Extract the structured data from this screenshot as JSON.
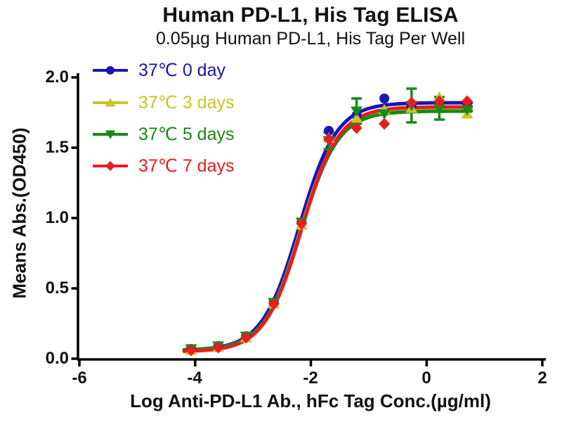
{
  "chart_data": {
    "type": "scatter",
    "title": "Human PD-L1, His Tag ELISA",
    "subtitle": "0.05µg Human PD-L1, His Tag Per Well",
    "xlabel": "Log Anti-PD-L1 Ab., hFc Tag Conc.(µg/ml)",
    "ylabel": "Means Abs.(OD450)",
    "xlim": [
      -6,
      2
    ],
    "ylim": [
      0,
      2
    ],
    "xticks": [
      -6,
      -4,
      -2,
      0,
      2
    ],
    "xticklabels": [
      "-6",
      "-4",
      "-2",
      "0",
      "2"
    ],
    "yticks": [
      0,
      0.5,
      1,
      1.5,
      2
    ],
    "yticklabels": [
      "0.0",
      "0.5",
      "1.0",
      "1.5",
      "2.0"
    ],
    "grid": false,
    "legend_position": "top-left-inside",
    "curve_model": "four-parameter-logistic",
    "curve_x_range": [
      -4.19,
      0.8
    ],
    "x": [
      -4.07,
      -3.6,
      -3.12,
      -2.64,
      -2.16,
      -1.69,
      -1.21,
      -0.73,
      -0.26,
      0.22,
      0.7
    ],
    "series": [
      {
        "name": "37℃ 0 day",
        "color": "#1a14b4",
        "marker": "circle",
        "values": [
          0.07,
          0.09,
          0.16,
          0.4,
          0.97,
          1.62,
          1.73,
          1.85,
          1.8,
          1.81,
          1.82
        ],
        "errors": [
          0,
          0,
          0,
          0,
          0,
          0,
          0,
          0,
          0,
          0,
          0
        ],
        "fit": {
          "bottom": 0.06,
          "top": 1.82,
          "logec50": -2.2,
          "hill": 1.35
        }
      },
      {
        "name": "37℃ 3 days",
        "color": "#c5c52a",
        "marker": "triangle-up",
        "values": [
          0.06,
          0.08,
          0.15,
          0.39,
          0.95,
          1.57,
          1.71,
          1.77,
          1.78,
          1.86,
          1.74
        ],
        "errors": [
          0,
          0,
          0,
          0,
          0,
          0,
          0,
          0,
          0,
          0,
          0
        ],
        "fit": {
          "bottom": 0.05,
          "top": 1.77,
          "logec50": -2.18,
          "hill": 1.35
        }
      },
      {
        "name": "37℃ 5 days",
        "color": "#168a16",
        "marker": "triangle-down",
        "values": [
          0.07,
          0.09,
          0.16,
          0.4,
          0.97,
          1.55,
          1.76,
          1.74,
          1.8,
          1.78,
          1.77
        ],
        "errors": [
          0,
          0,
          0,
          0,
          0,
          0.06,
          0.09,
          0,
          0.12,
          0.08,
          0
        ],
        "fit": {
          "bottom": 0.06,
          "top": 1.76,
          "logec50": -2.17,
          "hill": 1.35
        }
      },
      {
        "name": "37℃ 7 days",
        "color": "#e61e1e",
        "marker": "diamond",
        "values": [
          0.06,
          0.08,
          0.15,
          0.39,
          0.96,
          1.56,
          1.64,
          1.67,
          1.82,
          1.83,
          1.83
        ],
        "errors": [
          0,
          0,
          0,
          0,
          0,
          0,
          0,
          0,
          0,
          0,
          0
        ],
        "fit": {
          "bottom": 0.05,
          "top": 1.79,
          "logec50": -2.16,
          "hill": 1.35
        }
      }
    ]
  }
}
